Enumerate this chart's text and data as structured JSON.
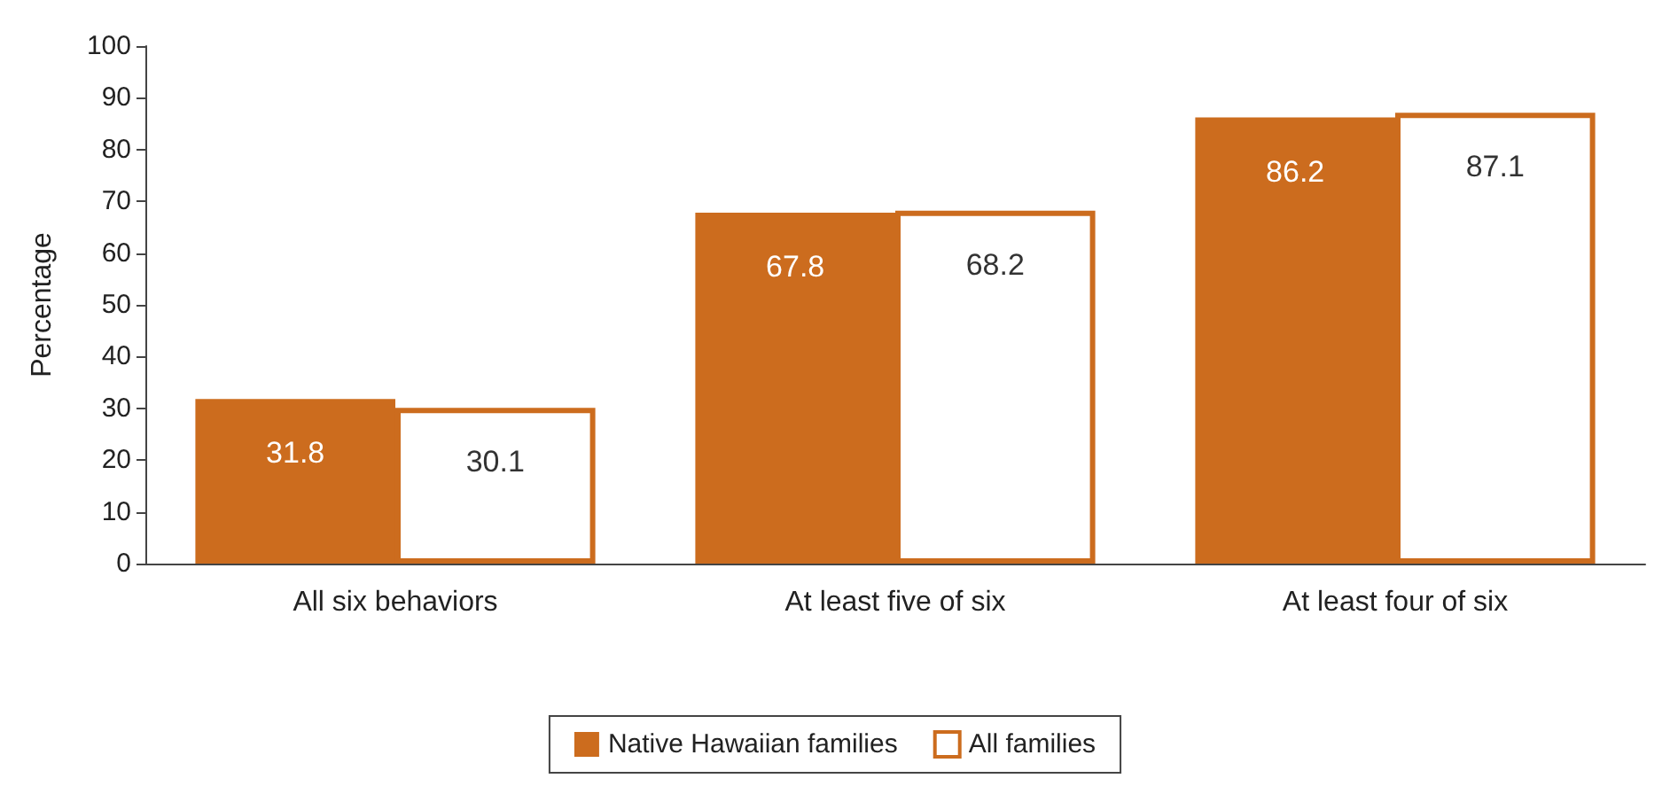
{
  "chart_data": {
    "type": "bar",
    "ylabel": "Percentage",
    "categories": [
      "All six behaviors",
      "At least five of six",
      "At least four of six"
    ],
    "series": [
      {
        "name": "Native Hawaiian families",
        "color": "#cc6c1e",
        "values": [
          31.8,
          67.8,
          86.2
        ]
      },
      {
        "name": "All families",
        "color": "#cc6c1e",
        "values": [
          30.1,
          68.2,
          87.1
        ]
      }
    ],
    "ylim": [
      0,
      100
    ],
    "yticks": [
      0,
      10,
      20,
      30,
      40,
      50,
      60,
      70,
      80,
      90,
      100
    ],
    "grid": false,
    "legend": "bottom",
    "data_labels": true
  }
}
